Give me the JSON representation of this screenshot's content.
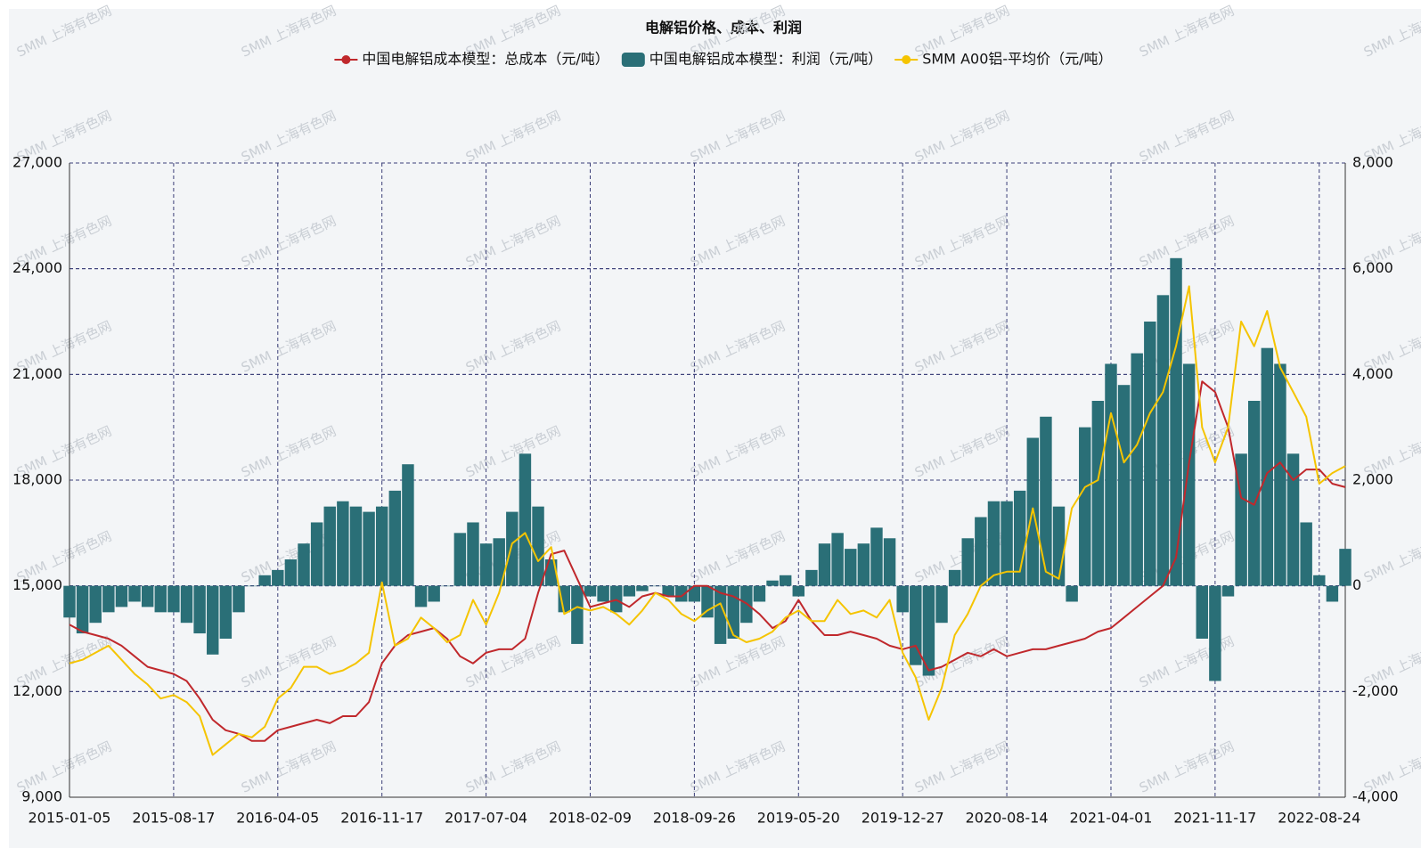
{
  "chart_data": {
    "type": "bar_line_dual",
    "title": "电解铝价格、成本、利润",
    "watermark": "SMM 上海有色网",
    "categories": [
      "2015-01-05",
      null,
      null,
      null,
      null,
      null,
      null,
      null,
      "2015-08-17",
      null,
      null,
      null,
      null,
      null,
      null,
      null,
      "2016-04-05",
      null,
      null,
      null,
      null,
      null,
      null,
      null,
      "2016-11-17",
      null,
      null,
      null,
      null,
      null,
      null,
      null,
      "2017-07-04",
      null,
      null,
      null,
      null,
      null,
      null,
      null,
      "2018-02-09",
      null,
      null,
      null,
      null,
      null,
      null,
      null,
      "2018-09-26",
      null,
      null,
      null,
      null,
      null,
      null,
      null,
      "2019-05-20",
      null,
      null,
      null,
      null,
      null,
      null,
      null,
      "2019-12-27",
      null,
      null,
      null,
      null,
      null,
      null,
      null,
      "2020-08-14",
      null,
      null,
      null,
      null,
      null,
      null,
      null,
      "2021-04-01",
      null,
      null,
      null,
      null,
      null,
      null,
      null,
      "2021-11-17",
      null,
      null,
      null,
      null,
      null,
      null,
      null,
      "2022-08-24",
      null,
      null
    ],
    "series": [
      {
        "name": "中国电解铝成本模型：总成本（元/吨）",
        "kind": "line",
        "color": "#c0282c",
        "axis": "y",
        "values": [
          13900,
          13700,
          13600,
          13500,
          13300,
          13000,
          12700,
          12600,
          12500,
          12300,
          11800,
          11200,
          10900,
          10800,
          10600,
          10600,
          10900,
          11000,
          11100,
          11200,
          11100,
          11300,
          11300,
          11700,
          12800,
          13300,
          13600,
          13700,
          13800,
          13500,
          13000,
          12800,
          13100,
          13200,
          13200,
          13500,
          14800,
          15900,
          16000,
          15200,
          14400,
          14500,
          14600,
          14400,
          14700,
          14800,
          14700,
          14700,
          15000,
          15000,
          14800,
          14700,
          14500,
          14200,
          13800,
          14000,
          14600,
          14000,
          13600,
          13600,
          13700,
          13600,
          13500,
          13300,
          13200,
          13300,
          12600,
          12700,
          12900,
          13100,
          13000,
          13200,
          13000,
          13100,
          13200,
          13200,
          13300,
          13400,
          13500,
          13700,
          13800,
          14100,
          14400,
          14700,
          15000,
          15800,
          18500,
          20800,
          20500,
          19500,
          17500,
          17300,
          18200,
          18500,
          18000,
          18300,
          18300,
          17900,
          17800
        ]
      },
      {
        "name": "中国电解铝成本模型：利润（元/吨）",
        "kind": "bar",
        "color": "#2a6f77",
        "axis": "y2",
        "values": [
          -600,
          -900,
          -700,
          -500,
          -400,
          -300,
          -400,
          -500,
          -500,
          -700,
          -900,
          -1300,
          -1000,
          -500,
          0,
          200,
          300,
          500,
          800,
          1200,
          1500,
          1600,
          1500,
          1400,
          1500,
          1800,
          2300,
          -400,
          -300,
          0,
          1000,
          1200,
          800,
          900,
          1400,
          2500,
          1500,
          500,
          -500,
          -1100,
          -200,
          -300,
          -500,
          -200,
          -100,
          0,
          -200,
          -300,
          -300,
          -600,
          -1100,
          -1000,
          -700,
          -300,
          100,
          200,
          -200,
          300,
          800,
          1000,
          700,
          800,
          1100,
          900,
          -500,
          -1500,
          -1700,
          -700,
          300,
          900,
          1300,
          1600,
          1600,
          1800,
          2800,
          3200,
          1500,
          -300,
          3000,
          3500,
          4200,
          3800,
          4400,
          5000,
          5500,
          6200,
          4200,
          -1000,
          -1800,
          -200,
          2500,
          3500,
          4500,
          4200,
          2500,
          1200,
          200,
          -300,
          700
        ]
      },
      {
        "name": "SMM A00铝-平均价（元/吨）",
        "kind": "line",
        "color": "#f5c400",
        "axis": "y",
        "values": [
          12800,
          12900,
          13100,
          13300,
          12900,
          12500,
          12200,
          11800,
          11900,
          11700,
          11300,
          10200,
          10500,
          10800,
          10700,
          11000,
          11800,
          12100,
          12700,
          12700,
          12500,
          12600,
          12800,
          13100,
          15100,
          13300,
          13500,
          14100,
          13800,
          13400,
          13600,
          14600,
          13900,
          14800,
          16200,
          16500,
          15700,
          16100,
          14200,
          14400,
          14300,
          14400,
          14200,
          13900,
          14300,
          14800,
          14600,
          14200,
          14000,
          14300,
          14500,
          13600,
          13400,
          13500,
          13700,
          14100,
          14300,
          14000,
          14000,
          14600,
          14200,
          14300,
          14100,
          14600,
          13100,
          12400,
          11200,
          12100,
          13600,
          14200,
          15000,
          15300,
          15400,
          15400,
          17200,
          15400,
          15200,
          17200,
          17800,
          18000,
          19900,
          18500,
          19000,
          19900,
          20500,
          21800,
          23500,
          19500,
          18500,
          19500,
          22500,
          21800,
          22800,
          21200,
          20500,
          19800,
          17900,
          18200,
          18400
        ]
      }
    ],
    "ylim": [
      9000,
      27000
    ],
    "yticks": [
      {
        "value": 9000,
        "label": "9,000"
      },
      {
        "value": 12000,
        "label": "12,000"
      },
      {
        "value": 15000,
        "label": "15,000"
      },
      {
        "value": 18000,
        "label": "18,000"
      },
      {
        "value": 21000,
        "label": "21,000"
      },
      {
        "value": 24000,
        "label": "24,000"
      },
      {
        "value": 27000,
        "label": "27,000"
      }
    ],
    "y2lim": [
      -4000,
      8000
    ],
    "y2ticks": [
      {
        "value": -4000,
        "label": "-4,000"
      },
      {
        "value": -2000,
        "label": "-2,000"
      },
      0,
      {
        "value": 2000,
        "label": "2,000"
      },
      {
        "value": 4000,
        "label": "4,000"
      },
      {
        "value": 6000,
        "label": "6,000"
      },
      {
        "value": 8000,
        "label": "8,000"
      }
    ],
    "grid": true,
    "legend": "top"
  }
}
